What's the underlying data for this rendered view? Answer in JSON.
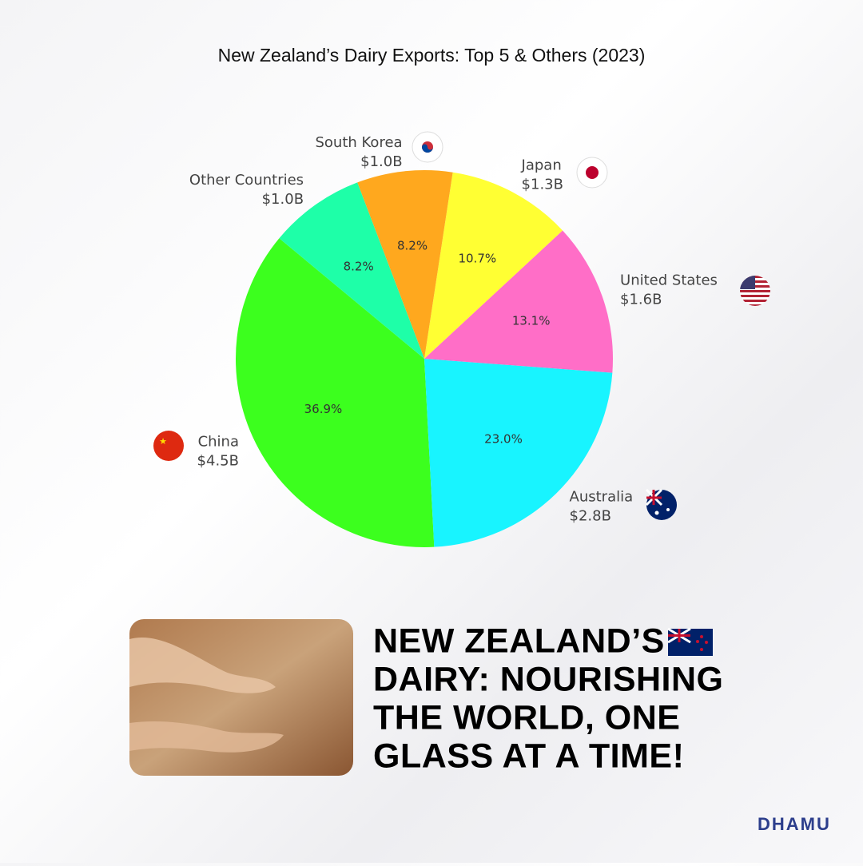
{
  "chart_data": {
    "type": "pie",
    "title": "New Zealand’s Dairy Exports: Top 5 & Others (2023)",
    "categories": [
      "China",
      "Australia",
      "United States",
      "Japan",
      "South Korea",
      "Other Countries"
    ],
    "values": [
      36.9,
      23.0,
      13.1,
      10.7,
      8.2,
      8.2
    ],
    "value_labels": [
      "36.9%",
      "23.0%",
      "13.1%",
      "10.7%",
      "8.2%",
      "8.2%"
    ],
    "amounts": [
      4.5,
      2.8,
      1.6,
      1.3,
      1.0,
      1.0
    ],
    "amount_labels": [
      "$4.5B",
      "$2.8B",
      "$1.6B",
      "$1.3B",
      "$1.0B",
      "$1.0B"
    ],
    "colors": [
      "#3cff1e",
      "#18f4ff",
      "#ff6ec7",
      "#ffff33",
      "#ffa81e",
      "#1effa8"
    ]
  },
  "headline": [
    "NEW ZEALAND’S",
    "DAIRY: NOURISHING",
    "THE WORLD, ONE",
    "GLASS AT A TIME!"
  ],
  "logo": "DHAMU"
}
